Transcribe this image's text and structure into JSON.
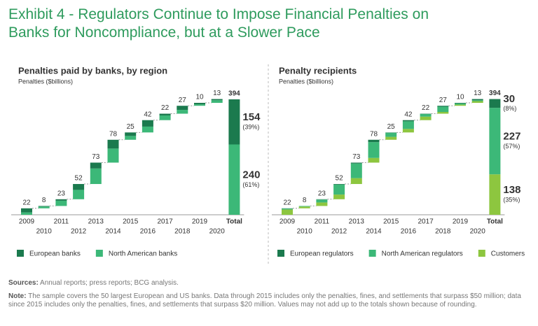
{
  "header": {
    "title": "Exhibit 4 - Regulators Continue to Impose Financial Penalties on Banks for Noncompliance, but at a Slower Pace"
  },
  "chart_data": [
    {
      "type": "waterfall",
      "title": "Penalties paid by banks, by region",
      "subtitle": "Penalties ($billions)",
      "categories": [
        "2009",
        "2010",
        "2011",
        "2012",
        "2013",
        "2014",
        "2015",
        "2016",
        "2017",
        "2018",
        "2019",
        "2020",
        "Total"
      ],
      "totals": [
        22,
        8,
        23,
        52,
        73,
        78,
        25,
        42,
        22,
        27,
        10,
        13,
        394
      ],
      "series": [
        {
          "name": "European banks",
          "color": "#1b7a4e",
          "values": [
            14,
            2,
            5,
            20,
            20,
            30,
            12,
            22,
            6,
            14,
            5,
            4,
            154
          ],
          "share_label": "(39%)"
        },
        {
          "name": "North American banks",
          "color": "#3cb878",
          "values": [
            8,
            6,
            18,
            32,
            53,
            48,
            13,
            20,
            16,
            13,
            5,
            9,
            240
          ],
          "share_label": "(61%)"
        }
      ]
    },
    {
      "type": "waterfall",
      "title": "Penalty recipients",
      "subtitle": "Penalties ($billions)",
      "categories": [
        "2009",
        "2010",
        "2011",
        "2012",
        "2013",
        "2014",
        "2015",
        "2016",
        "2017",
        "2018",
        "2019",
        "2020",
        "Total"
      ],
      "totals": [
        22,
        8,
        23,
        52,
        73,
        78,
        25,
        42,
        22,
        27,
        10,
        13,
        394
      ],
      "series": [
        {
          "name": "European regulators",
          "color": "#1b7a4e",
          "values": [
            1,
            0,
            1,
            2,
            3,
            8,
            1,
            4,
            1,
            3,
            2,
            4,
            30
          ],
          "share_label": "(8%)"
        },
        {
          "name": "North American regulators",
          "color": "#3cb878",
          "values": [
            3,
            2,
            10,
            34,
            50,
            54,
            14,
            26,
            9,
            18,
            4,
            3,
            227
          ],
          "share_label": "(57%)"
        },
        {
          "name": "Customers",
          "color": "#8dc63f",
          "values": [
            18,
            6,
            12,
            16,
            20,
            16,
            10,
            12,
            12,
            6,
            4,
            6,
            138
          ],
          "share_label": "(35%)"
        }
      ]
    }
  ],
  "footer": {
    "sources": {
      "label": "Sources:",
      "text": "Annual reports; press reports; BCG analysis."
    },
    "note": {
      "label": "Note:",
      "text": "The sample covers the 50 largest European and US banks. Data through 2015 includes only the penalties, fines, and settlements that surpass $50 million; data since 2015 includes only the penalties, fines, and settlements that surpass $20 million. Values may not add up to the totals shown because of rounding."
    }
  }
}
